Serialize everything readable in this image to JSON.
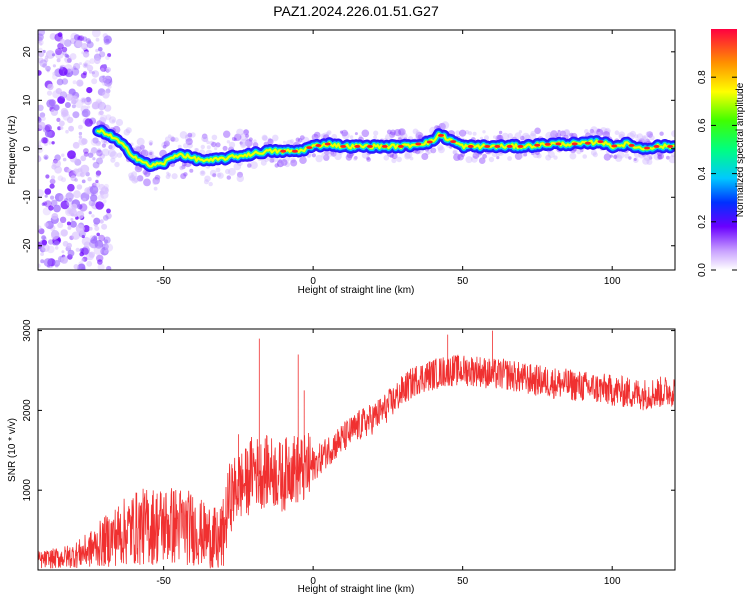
{
  "title": "PAZ1.2024.226.01.51.G27",
  "chart_data": [
    {
      "type": "heatmap",
      "xlabel": "Height of straight line (km)",
      "ylabel": "Frequency (Hz)",
      "xlim": [
        -92,
        121
      ],
      "ylim": [
        -25,
        24.5
      ],
      "xticks": [
        -50,
        0,
        50,
        100
      ],
      "yticks": [
        -20,
        -10,
        0,
        10,
        20
      ],
      "xtick_labels": [
        "-50",
        "0",
        "50",
        "100"
      ],
      "ytick_labels": [
        "-20",
        "-10",
        "0",
        "10",
        "20"
      ],
      "colorbar": {
        "label": "Normalized spectral amplitude",
        "range": [
          0,
          1
        ],
        "ticks": [
          0.0,
          0.2,
          0.4,
          0.6,
          0.8
        ],
        "tick_labels": [
          "0.0",
          "0.2",
          "0.4",
          "0.6",
          "0.8"
        ],
        "colormap": "rainbow (white-violet-blue-cyan-green-yellow-red)"
      },
      "ridge": [
        {
          "x": -70,
          "y": 3.5
        },
        {
          "x": -65,
          "y": 1.5
        },
        {
          "x": -60,
          "y": -1.5
        },
        {
          "x": -55,
          "y": -3.5
        },
        {
          "x": -50,
          "y": -3
        },
        {
          "x": -45,
          "y": -1
        },
        {
          "x": -40,
          "y": -2
        },
        {
          "x": -35,
          "y": -2.5
        },
        {
          "x": -30,
          "y": -2
        },
        {
          "x": -25,
          "y": -1.5
        },
        {
          "x": -20,
          "y": -1
        },
        {
          "x": -15,
          "y": -0.5
        },
        {
          "x": -10,
          "y": -0.5
        },
        {
          "x": -5,
          "y": -0.5
        },
        {
          "x": 0,
          "y": 0.5
        },
        {
          "x": 5,
          "y": 1
        },
        {
          "x": 10,
          "y": 0.5
        },
        {
          "x": 20,
          "y": 0.5
        },
        {
          "x": 30,
          "y": 0.5
        },
        {
          "x": 40,
          "y": 1.5
        },
        {
          "x": 42,
          "y": 3
        },
        {
          "x": 50,
          "y": 0.5
        },
        {
          "x": 60,
          "y": 0.5
        },
        {
          "x": 70,
          "y": 0.5
        },
        {
          "x": 80,
          "y": 1
        },
        {
          "x": 90,
          "y": 1
        },
        {
          "x": 96,
          "y": 1.5
        },
        {
          "x": 100,
          "y": 0.5
        },
        {
          "x": 105,
          "y": 1
        },
        {
          "x": 110,
          "y": 0
        },
        {
          "x": 115,
          "y": 0.5
        },
        {
          "x": 121,
          "y": 0.5
        }
      ]
    },
    {
      "type": "line",
      "xlabel": "Height of straight line (km)",
      "ylabel": "SNR (10 * v/v)",
      "xlim": [
        -92,
        121
      ],
      "ylim": [
        0,
        3020
      ],
      "xticks": [
        -50,
        0,
        50,
        100
      ],
      "yticks": [
        1000,
        2000,
        3000
      ],
      "xtick_labels": [
        "-50",
        "0",
        "50",
        "100"
      ],
      "ytick_labels": [
        "1000",
        "2000",
        "3000"
      ],
      "color": "#f03030",
      "series": [
        {
          "x": [
            -92,
            -85,
            -80,
            -75,
            -70,
            -65,
            -60,
            -55,
            -50,
            -45,
            -40,
            -35,
            -32,
            -30,
            -28,
            -25,
            -22,
            -20,
            -18,
            -15,
            -12,
            -10,
            -8,
            -5,
            -3,
            0,
            5,
            10,
            15,
            20,
            25,
            30,
            35,
            40,
            45,
            50,
            55,
            60,
            65,
            70,
            80,
            90,
            100,
            110,
            121
          ],
          "y": [
            120,
            150,
            180,
            250,
            350,
            450,
            520,
            550,
            560,
            560,
            520,
            420,
            300,
            450,
            900,
            1050,
            1100,
            1300,
            1200,
            1250,
            1200,
            1150,
            1300,
            1250,
            1250,
            1300,
            1500,
            1650,
            1800,
            1900,
            2050,
            2250,
            2400,
            2450,
            2500,
            2500,
            2500,
            2450,
            2450,
            2400,
            2350,
            2300,
            2250,
            2200,
            2250
          ]
        }
      ],
      "spikes": [
        {
          "x": -18,
          "y": 2900
        },
        {
          "x": -5,
          "y": 2700
        },
        {
          "x": -3,
          "y": 2250
        },
        {
          "x": -25,
          "y": 1700
        },
        {
          "x": 45,
          "y": 2950
        },
        {
          "x": 60,
          "y": 3000
        }
      ]
    }
  ]
}
